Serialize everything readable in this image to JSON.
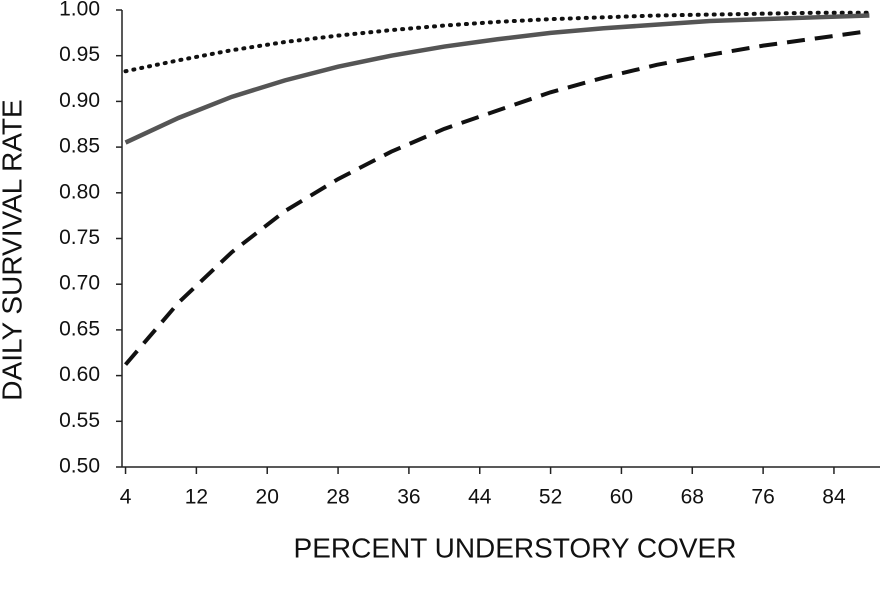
{
  "chart_data": {
    "type": "line",
    "x_label": "PERCENT UNDERSTORY COVER",
    "y_label": "DAILY SURVIVAL RATE",
    "x": [
      4,
      10,
      16,
      22,
      28,
      34,
      40,
      46,
      52,
      58,
      64,
      70,
      76,
      82,
      88
    ],
    "series": [
      {
        "color": "#111111",
        "dash": "dotted",
        "values": [
          0.933,
          0.945,
          0.956,
          0.965,
          0.972,
          0.978,
          0.983,
          0.987,
          0.99,
          0.992,
          0.994,
          0.995,
          0.996,
          0.997,
          0.997
        ]
      },
      {
        "color": "#555555",
        "dash": "solid",
        "values": [
          0.855,
          0.882,
          0.905,
          0.923,
          0.938,
          0.95,
          0.96,
          0.968,
          0.975,
          0.98,
          0.984,
          0.988,
          0.99,
          0.992,
          0.994
        ]
      },
      {
        "color": "#111111",
        "dash": "dashed",
        "values": [
          0.612,
          0.68,
          0.735,
          0.78,
          0.815,
          0.845,
          0.87,
          0.89,
          0.91,
          0.926,
          0.94,
          0.951,
          0.961,
          0.969,
          0.977
        ]
      }
    ],
    "xlim": [
      3.6,
      89.2
    ],
    "xticks": [
      4,
      12,
      20,
      28,
      36,
      44,
      52,
      60,
      68,
      76,
      84
    ],
    "ylim": [
      0.5,
      1.0
    ],
    "yticks": [
      {
        "value": 0.5,
        "label": "0.50"
      },
      {
        "value": 0.55,
        "label": "0.55"
      },
      {
        "value": 0.6,
        "label": "0.60"
      },
      {
        "value": 0.65,
        "label": "0.65"
      },
      {
        "value": 0.7,
        "label": "0.70"
      },
      {
        "value": 0.75,
        "label": "0.75"
      },
      {
        "value": 0.8,
        "label": "0.80"
      },
      {
        "value": 0.85,
        "label": "0.85"
      },
      {
        "value": 0.9,
        "label": "0.90"
      },
      {
        "value": 0.95,
        "label": "0.95"
      },
      {
        "value": 1.0,
        "label": "1.00"
      }
    ]
  }
}
